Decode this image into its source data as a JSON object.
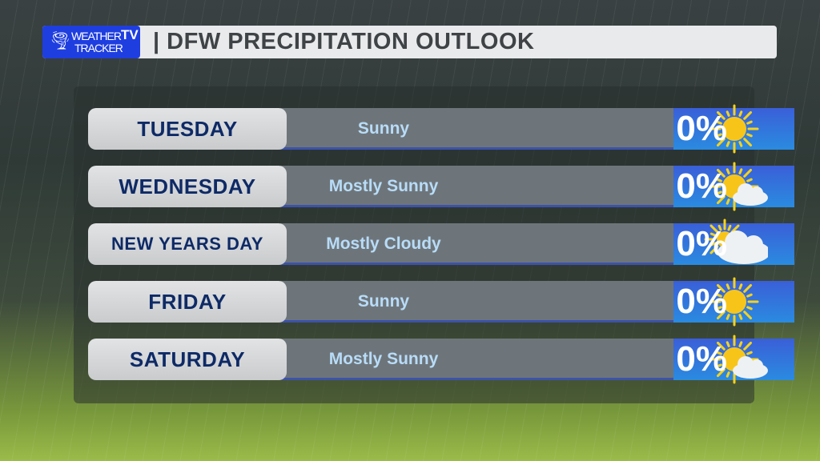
{
  "header": {
    "logo_line1": "WEATHER",
    "logo_line2": "TRACKER",
    "logo_tv": "TV",
    "title": "| DFW PRECIPITATION OUTLOOK"
  },
  "rows": [
    {
      "day": "TUESDAY",
      "condition": "Sunny",
      "icon": "sun-icon",
      "precip": "0%"
    },
    {
      "day": "WEDNESDAY",
      "condition": "Mostly Sunny",
      "icon": "sun-cloud-icon",
      "precip": "0%"
    },
    {
      "day": "NEW YEARS DAY",
      "condition": "Mostly Cloudy",
      "icon": "cloud-sun-icon",
      "precip": "0%"
    },
    {
      "day": "FRIDAY",
      "condition": "Sunny",
      "icon": "sun-icon",
      "precip": "0%"
    },
    {
      "day": "SATURDAY",
      "condition": "Mostly Sunny",
      "icon": "sun-cloud-icon",
      "precip": "0%"
    }
  ],
  "colors": {
    "logo": "#1f3ee0",
    "day_text": "#0e2a66",
    "condition_text": "#b8dcf8"
  }
}
